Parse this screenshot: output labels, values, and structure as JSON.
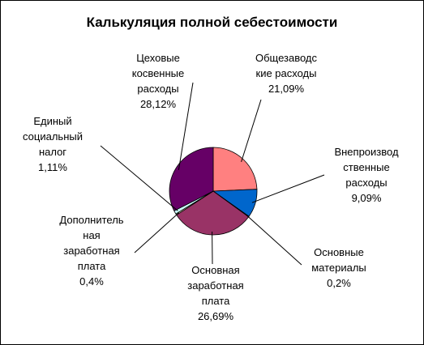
{
  "chart_data": {
    "type": "pie",
    "title": "Калькуляция полной себестоимости",
    "slices": [
      {
        "label": "Общезаводс\nкие расходы",
        "value_text": "21,09%",
        "value": 21.09,
        "color": "#FF8080"
      },
      {
        "label": "Внепроизвод\nственные\nрасходы",
        "value_text": "9,09%",
        "value": 9.09,
        "color": "#0066CC"
      },
      {
        "label": "Основные\nматериалы",
        "value_text": "0,2%",
        "value": 0.2,
        "color": "#C0C0C0"
      },
      {
        "label": "Основная\nзаработная\nплата",
        "value_text": "26,69%",
        "value": 26.69,
        "color": "#993366"
      },
      {
        "label": "Дополнитель\nная\nзаработная\nплата",
        "value_text": "0,4%",
        "value": 0.4,
        "color": "#FFFFCC"
      },
      {
        "label": "Единый\nсоциальный\nналог",
        "value_text": "1,11%",
        "value": 1.11,
        "color": "#CCFFFF"
      },
      {
        "label": "Цеховые\nкосвенные\nрасходы",
        "value_text": "28,12%",
        "value": 28.12,
        "color": "#660066"
      }
    ]
  }
}
